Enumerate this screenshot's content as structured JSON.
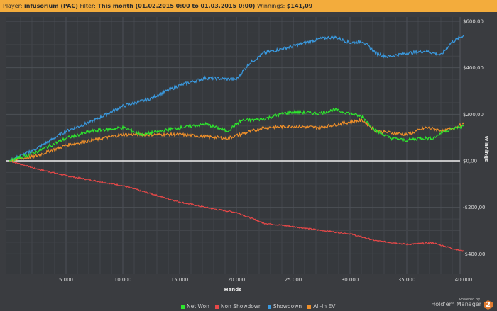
{
  "header": {
    "player_label": "Player:",
    "player_value": "infusorium (PAC)",
    "filter_label": "Filter:",
    "filter_value": "This month (01.02.2015 0:00 to 01.03.2015 0:00)",
    "winnings_label": "Winnings:",
    "winnings_value": "$141,09"
  },
  "branding": {
    "powered_by": "Powered by",
    "name": "Hold'em Manager",
    "logo": "2"
  },
  "chart_data": {
    "type": "line",
    "xlabel": "Hands",
    "ylabel": "Winnings",
    "xlim": [
      0,
      40300
    ],
    "ylim": [
      -420,
      620
    ],
    "x_ticks": [
      5000,
      10000,
      15000,
      20000,
      25000,
      30000,
      35000,
      40000
    ],
    "x_tick_labels": [
      "5 000",
      "10 000",
      "15 000",
      "20 000",
      "25 000",
      "30 000",
      "35 000",
      "40 000"
    ],
    "y_ticks": [
      -400,
      -200,
      0,
      200,
      400,
      600
    ],
    "y_tick_labels": [
      "-$400,00",
      "-$200,00",
      "$0,00",
      "$200,00",
      "$400,00",
      "$600,00"
    ],
    "grid": true,
    "legend_position": "bottom",
    "series": [
      {
        "name": "Net Won",
        "color": "#2ee62e",
        "x": [
          0,
          2300,
          5000,
          7300,
          10000,
          11700,
          15000,
          17300,
          19200,
          20400,
          22400,
          24200,
          25000,
          27300,
          28600,
          30000,
          31100,
          32300,
          33600,
          35000,
          36100,
          37300,
          38300,
          40000
        ],
        "y": [
          0,
          36,
          97,
          128,
          143,
          113,
          143,
          158,
          128,
          173,
          180,
          204,
          210,
          204,
          219,
          204,
          189,
          128,
          97,
          88,
          97,
          97,
          128,
          149
        ]
      },
      {
        "name": "Non Showdown",
        "color": "#e84848",
        "x": [
          0,
          2300,
          5000,
          10000,
          15000,
          18000,
          20000,
          22400,
          25000,
          27300,
          30000,
          32300,
          35000,
          37300,
          40000
        ],
        "y": [
          0,
          -33,
          -64,
          -107,
          -177,
          -207,
          -222,
          -268,
          -283,
          -298,
          -314,
          -344,
          -359,
          -353,
          -390
        ]
      },
      {
        "name": "Showdown",
        "color": "#3a9ae0",
        "x": [
          0,
          2300,
          5000,
          7300,
          10000,
          12300,
          15000,
          17300,
          20000,
          21100,
          22400,
          25000,
          27300,
          28600,
          30000,
          31100,
          32300,
          33300,
          35000,
          36700,
          38000,
          38900,
          40000
        ],
        "y": [
          0,
          50,
          128,
          170,
          235,
          265,
          325,
          356,
          350,
          417,
          463,
          493,
          524,
          533,
          508,
          514,
          463,
          448,
          463,
          472,
          454,
          508,
          540
        ]
      },
      {
        "name": "All-In EV",
        "color": "#f0902a",
        "x": [
          0,
          2300,
          5000,
          10000,
          15000,
          19200,
          22400,
          25000,
          27300,
          30000,
          31100,
          32300,
          35000,
          36700,
          38300,
          40000
        ],
        "y": [
          0,
          20,
          67,
          113,
          113,
          97,
          143,
          149,
          143,
          167,
          174,
          128,
          113,
          143,
          128,
          158
        ]
      }
    ]
  }
}
